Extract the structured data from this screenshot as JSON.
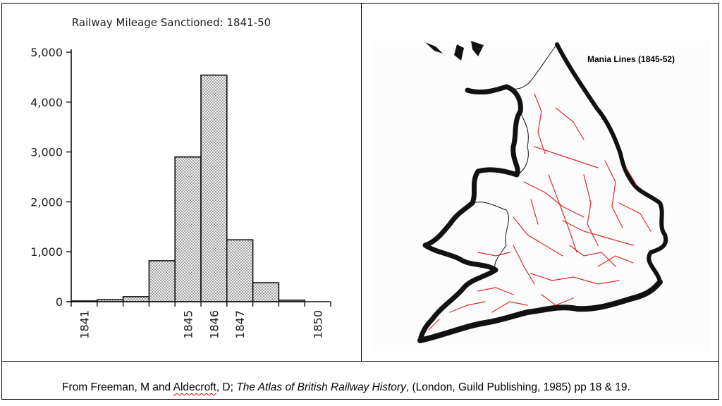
{
  "chart_data": {
    "type": "bar",
    "title": "Railway Mileage Sanctioned: 1841-50",
    "x": [
      1841,
      1842,
      1843,
      1844,
      1845,
      1846,
      1847,
      1848,
      1849,
      1850
    ],
    "values": [
      15,
      40,
      100,
      820,
      2900,
      4540,
      1240,
      380,
      30,
      0
    ],
    "xtick_labels": [
      "1841",
      "1845",
      "1846",
      "1847",
      "1850"
    ],
    "xtick_values": [
      1841,
      1845,
      1846,
      1847,
      1850
    ],
    "ytick_labels": [
      "0",
      "1,000",
      "2,000",
      "3,000",
      "4,000",
      "5,000"
    ],
    "ytick_values": [
      0,
      1000,
      2000,
      3000,
      4000,
      5000
    ],
    "ylim": [
      0,
      5000
    ],
    "xlim": [
      1840.5,
      1850.5
    ],
    "bar_fill": "stippled",
    "grid": false
  },
  "map": {
    "title": "Mania Lines (1845-52)",
    "line_color": "#dd2a2a",
    "coast_color": "#111111"
  },
  "caption": {
    "prefix": "From Freeman, M and ",
    "author2": "Aldecroft",
    "mid": ", D; ",
    "book_title": "The Atlas of British Railway History",
    "suffix": ", (London, Guild Publishing, 1985) pp 18 & 19."
  }
}
